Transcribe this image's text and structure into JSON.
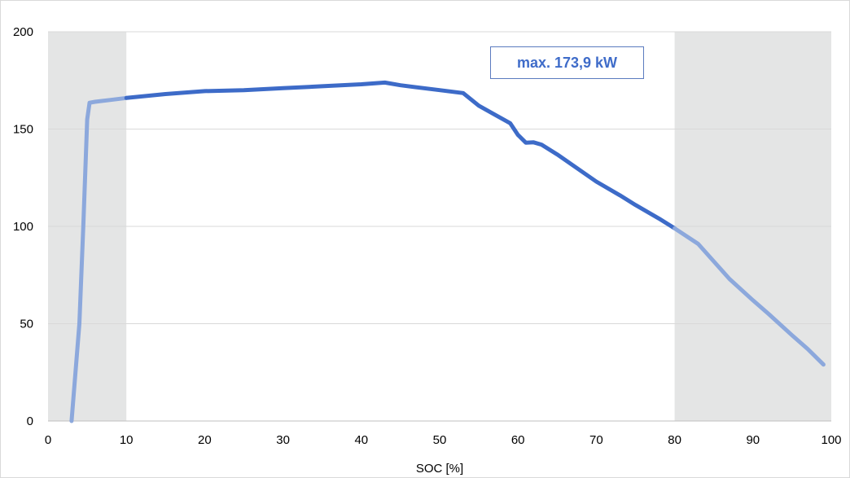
{
  "chart_data": {
    "type": "line",
    "title": "",
    "xlabel": "SOC [%]",
    "ylabel": "",
    "xlim": [
      0,
      100
    ],
    "ylim": [
      0,
      200
    ],
    "x_ticks": [
      "0",
      "10",
      "20",
      "30",
      "40",
      "50",
      "60",
      "70",
      "80",
      "90",
      "100"
    ],
    "y_ticks": [
      "0",
      "50",
      "100",
      "150",
      "200"
    ],
    "grid": "horizontal",
    "legend": "none",
    "annotation": "max. 173,9 kW",
    "shaded_ranges": [
      [
        0,
        10
      ],
      [
        80,
        100
      ]
    ],
    "colors": {
      "line": "#3d6bc8",
      "line_faded": "#8ca8dc",
      "shading": "#e4e5e5",
      "gridline": "#d9d9d9",
      "annotation_text": "#3f6cc9",
      "annotation_border": "#5b7bbf"
    },
    "series": [
      {
        "x": [
          3,
          3.5,
          4,
          4.5,
          5,
          5.3,
          6,
          8,
          10,
          15,
          20,
          25,
          30,
          35,
          40,
          43,
          45,
          50,
          53,
          55,
          57,
          59,
          60,
          61,
          62,
          63,
          65,
          70,
          73,
          75,
          78,
          80,
          83,
          85,
          87,
          90,
          92,
          95,
          97,
          99
        ],
        "values": [
          0,
          25,
          50,
          100,
          155,
          163.5,
          164,
          165,
          166,
          168,
          169.5,
          170,
          171,
          172,
          173,
          173.9,
          172.5,
          170,
          168.5,
          162,
          157.5,
          153,
          147,
          143,
          143.2,
          142,
          137,
          123,
          116,
          111,
          104,
          99,
          91,
          82,
          73,
          62,
          55,
          44,
          37,
          29
        ]
      }
    ]
  }
}
